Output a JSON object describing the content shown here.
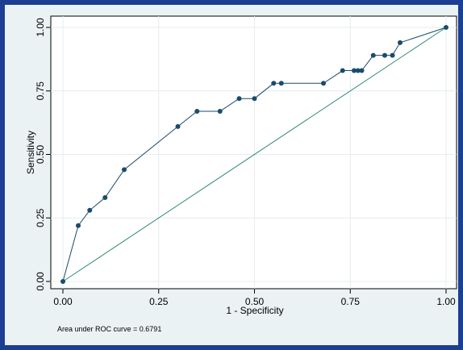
{
  "chart_data": {
    "type": "line",
    "xlabel": "1 - Specificity",
    "ylabel": "Sensitivity",
    "xlim": [
      0,
      1
    ],
    "ylim": [
      0,
      1
    ],
    "xticks": [
      "0.00",
      "0.25",
      "0.50",
      "0.75",
      "1.00"
    ],
    "yticks": [
      "0.00",
      "0.25",
      "0.50",
      "0.75",
      "1.00"
    ],
    "tick_values": [
      0,
      0.25,
      0.5,
      0.75,
      1
    ],
    "grid": true,
    "annotation": "Area under ROC curve = 0.6791",
    "series": [
      {
        "x": [
          0,
          0.04,
          0.07,
          0.11,
          0.16,
          0.3,
          0.35,
          0.41,
          0.46,
          0.5,
          0.55,
          0.57,
          0.68,
          0.73,
          0.76,
          0.77,
          0.78,
          0.81,
          0.84,
          0.86,
          0.88,
          1.0
        ],
        "y": [
          0,
          0.22,
          0.28,
          0.33,
          0.44,
          0.61,
          0.67,
          0.67,
          0.72,
          0.72,
          0.78,
          0.78,
          0.78,
          0.83,
          0.83,
          0.83,
          0.83,
          0.89,
          0.89,
          0.89,
          0.94,
          1.0
        ]
      },
      {
        "x": [
          0,
          1
        ],
        "y": [
          0,
          1
        ]
      }
    ]
  },
  "colors": {
    "frame": "#1c3f94",
    "panel": "#eaf2f3",
    "roc": "#1b4b6b",
    "reference": "#2f8a7a",
    "grid": "#e6ecef"
  }
}
